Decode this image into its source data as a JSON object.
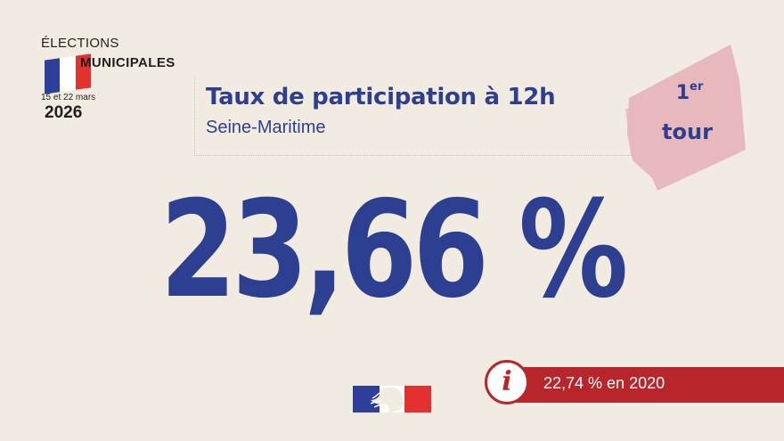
{
  "logo": {
    "line1": "ÉLECTIONS",
    "line2": "MUNICIPALES",
    "dates": "15 et 22 mars",
    "year": "2026",
    "flag_colors": [
      "#2b3f9b",
      "#ffffff",
      "#e3312f"
    ]
  },
  "header": {
    "title": "Taux de participation à 12h",
    "subtitle": "Seine-Maritime"
  },
  "badge": {
    "number": "1",
    "suffix": "er",
    "word": "tour",
    "color": "#e7b9bd"
  },
  "result": {
    "value": "23,66 %"
  },
  "info": {
    "icon": "info-icon",
    "text": "22,74 % en 2020",
    "color": "#b8262b"
  },
  "colors": {
    "background": "#f2ebe1",
    "primary": "#2d3f91"
  }
}
